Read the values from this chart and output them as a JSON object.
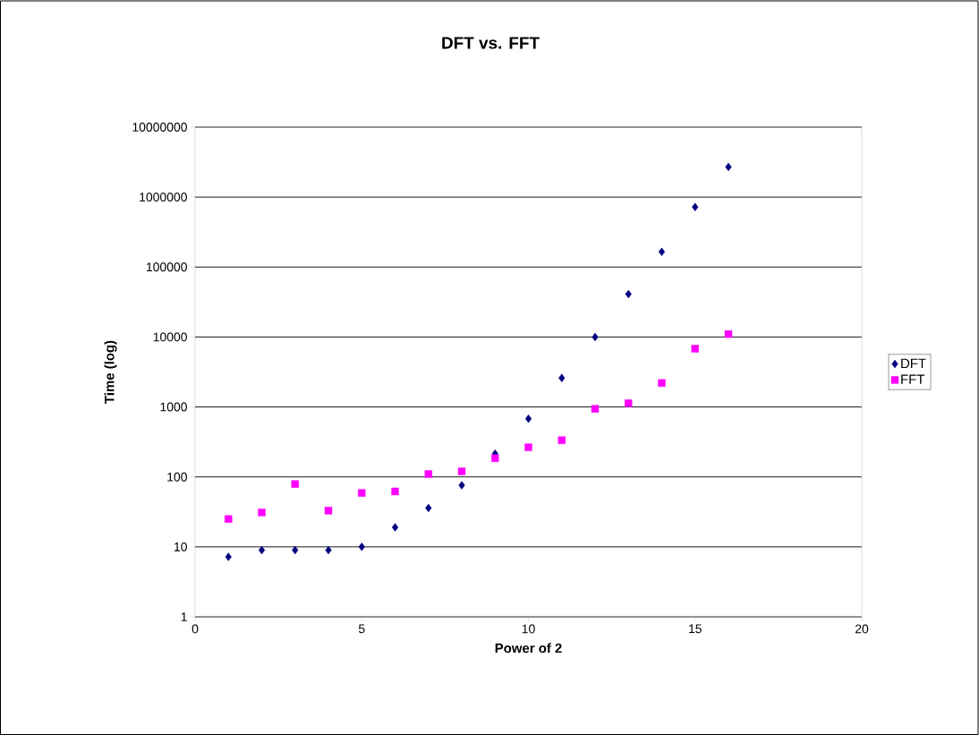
{
  "chart_data": {
    "type": "scatter",
    "title": "DFT vs. FFT",
    "xlabel": "Power of 2",
    "ylabel": "Time (log)",
    "x": [
      1,
      2,
      3,
      4,
      5,
      6,
      7,
      8,
      9,
      10,
      11,
      12,
      13,
      14,
      15,
      16
    ],
    "series": [
      {
        "name": "DFT",
        "color": "#000080",
        "marker": "diamond",
        "values": [
          7.2,
          9,
          9,
          9,
          10,
          19,
          36,
          76,
          215,
          680,
          2600,
          10000,
          41000,
          165000,
          720000,
          2700000
        ]
      },
      {
        "name": "FFT",
        "color": "#ff00ff",
        "marker": "square",
        "values": [
          25,
          31,
          79,
          33,
          59,
          62,
          110,
          120,
          185,
          265,
          335,
          940,
          1130,
          2200,
          6800,
          11000
        ]
      }
    ],
    "xlim": [
      0,
      20
    ],
    "xticks": [
      0,
      5,
      10,
      15,
      20
    ],
    "ylim": [
      1,
      10000000
    ],
    "yticks": [
      1,
      10,
      100,
      1000,
      10000,
      100000,
      1000000,
      10000000
    ],
    "log": "y",
    "grid": "y",
    "legend": "right"
  }
}
